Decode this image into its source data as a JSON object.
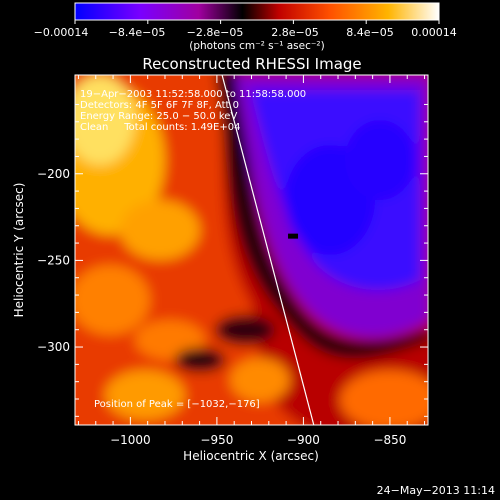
{
  "chart_data": {
    "type": "heatmap",
    "title": "Reconstructed RHESSI Image",
    "xlabel": "Heliocentric X (arcsec)",
    "ylabel": "Heliocentric Y (arcsec)",
    "x_ticks": [
      "−1000",
      "−950",
      "−900",
      "−850"
    ],
    "y_ticks": [
      "−200",
      "−250",
      "−300"
    ],
    "x_tick_values": [
      -1000,
      -950,
      -900,
      -850
    ],
    "y_tick_values": [
      -200,
      -250,
      -300
    ],
    "xlim": [
      -1032,
      -828
    ],
    "ylim": [
      -345,
      -143
    ],
    "colorbar": {
      "ticks": [
        "−0.00014",
        "−8.4e−05",
        "−2.8e−05",
        "2.8e−05",
        "8.4e−05",
        "0.00014"
      ],
      "tick_values": [
        -0.00014,
        -8.4e-05,
        -2.8e-05,
        2.8e-05,
        8.4e-05,
        0.00014
      ],
      "label": "(photons cm⁻² s⁻¹ asec⁻²)",
      "range": [
        -0.00014,
        0.00014
      ],
      "colors": [
        "#0000ff",
        "#7a00ff",
        "#a000a0",
        "#000000",
        "#c00000",
        "#ff5000",
        "#ffb400",
        "#ffffff"
      ]
    },
    "annotations": [
      "19−Apr−2003 11:52:58.000 to 11:58:58.000",
      "Detectors: 4F 5F 6F 7F 8F, Att 0",
      "Energy Range: 25.0 − 50.0 keV",
      "Clean     Total counts: 1.49E+04"
    ],
    "peak_text": "Position of Peak = [−1032,−176]",
    "peak_position": [
      -1032,
      -176
    ],
    "limb_line": {
      "x": [
        -947,
        -894
      ],
      "y": [
        -143,
        -345
      ]
    },
    "min_marker": {
      "x": -906,
      "y": -236
    },
    "field_description": "Bright positive emission (yellow/orange/red) in left and lower-left portion; negative region (blue/purple) in upper-right, separated by a dark band; a dark minimum marker near (-906, -236)."
  },
  "footer_date": "24−May−2013 11:14"
}
